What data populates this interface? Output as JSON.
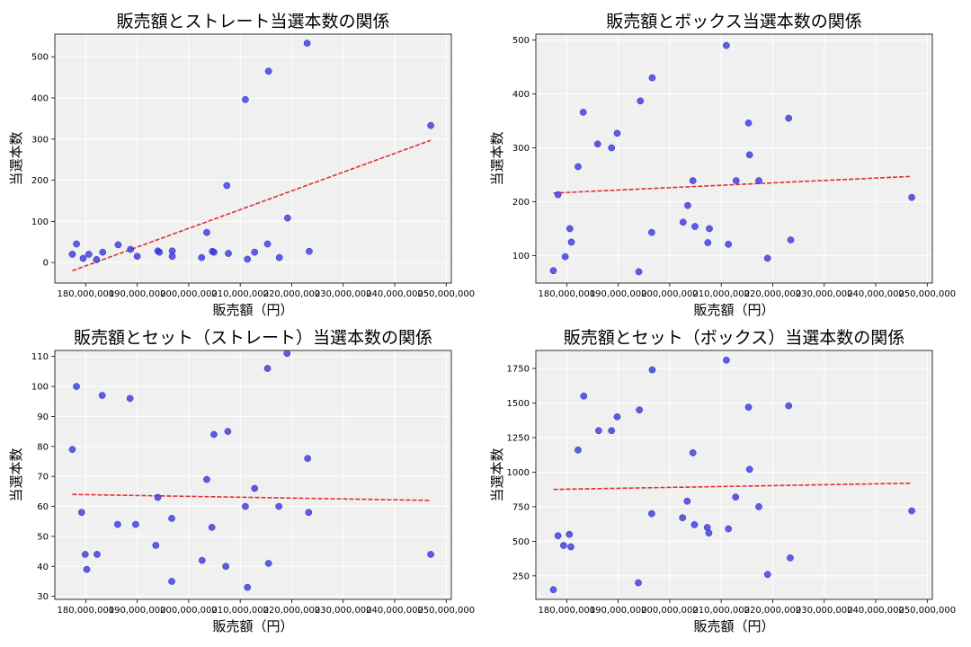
{
  "chart_data": [
    {
      "type": "scatter",
      "title": "販売額とストレート当選本数の関係",
      "xlabel": "販売額（円）",
      "ylabel": "当選本数",
      "xlim": [
        174000000,
        251000000
      ],
      "ylim": [
        -50,
        555
      ],
      "xticks": [
        180000000,
        190000000,
        200000000,
        210000000,
        220000000,
        230000000,
        240000000,
        250000000
      ],
      "xtick_labels": [
        "180,000,000",
        "190,000,000",
        "200,000,000",
        "210,000,000",
        "220,000,000",
        "230,000,000",
        "240,000,000",
        "250,000,000"
      ],
      "yticks": [
        0,
        100,
        200,
        300,
        400,
        500
      ],
      "ytick_labels": [
        "0",
        "100",
        "200",
        "300",
        "400",
        "500"
      ],
      "grid": true,
      "colors": {
        "points": "#3b3be0",
        "trend": "#e03030",
        "bg": "#f0f0f0"
      },
      "points": [
        {
          "x": 177400000,
          "y": 20
        },
        {
          "x": 178200000,
          "y": 45
        },
        {
          "x": 179500000,
          "y": 10
        },
        {
          "x": 180600000,
          "y": 20
        },
        {
          "x": 182100000,
          "y": 7
        },
        {
          "x": 183300000,
          "y": 25
        },
        {
          "x": 186300000,
          "y": 43
        },
        {
          "x": 188700000,
          "y": 32
        },
        {
          "x": 190000000,
          "y": 15
        },
        {
          "x": 194000000,
          "y": 28
        },
        {
          "x": 194300000,
          "y": 25
        },
        {
          "x": 196800000,
          "y": 15
        },
        {
          "x": 196800000,
          "y": 28
        },
        {
          "x": 202500000,
          "y": 12
        },
        {
          "x": 203500000,
          "y": 73
        },
        {
          "x": 204600000,
          "y": 27
        },
        {
          "x": 204900000,
          "y": 25
        },
        {
          "x": 207400000,
          "y": 187
        },
        {
          "x": 207700000,
          "y": 22
        },
        {
          "x": 211000000,
          "y": 396
        },
        {
          "x": 211400000,
          "y": 8
        },
        {
          "x": 212800000,
          "y": 25
        },
        {
          "x": 215300000,
          "y": 45
        },
        {
          "x": 215500000,
          "y": 465
        },
        {
          "x": 217600000,
          "y": 12
        },
        {
          "x": 219200000,
          "y": 108
        },
        {
          "x": 223000000,
          "y": 533
        },
        {
          "x": 223400000,
          "y": 27
        },
        {
          "x": 247000000,
          "y": 333
        }
      ],
      "trend": {
        "x1": 177400000,
        "y1": -20,
        "x2": 247000000,
        "y2": 297
      }
    },
    {
      "type": "scatter",
      "title": "販売額とボックス当選本数の関係",
      "xlabel": "販売額（円）",
      "ylabel": "当選本数",
      "xlim": [
        174000000,
        251000000
      ],
      "ylim": [
        49,
        511
      ],
      "xticks": [
        180000000,
        190000000,
        200000000,
        210000000,
        220000000,
        230000000,
        240000000,
        250000000
      ],
      "xtick_labels": [
        "180,000,000",
        "190,000,000",
        "200,000,000",
        "210,000,000",
        "220,000,000",
        "230,000,000",
        "240,000,000",
        "250,000,000"
      ],
      "yticks": [
        100,
        200,
        300,
        400,
        500
      ],
      "ytick_labels": [
        "100",
        "200",
        "300",
        "400",
        "500"
      ],
      "grid": true,
      "colors": {
        "points": "#3b3be0",
        "trend": "#e03030",
        "bg": "#f0f0f0"
      },
      "points": [
        {
          "x": 177400000,
          "y": 72
        },
        {
          "x": 178300000,
          "y": 213
        },
        {
          "x": 179700000,
          "y": 98
        },
        {
          "x": 180600000,
          "y": 150
        },
        {
          "x": 180900000,
          "y": 125
        },
        {
          "x": 182200000,
          "y": 265
        },
        {
          "x": 183200000,
          "y": 366
        },
        {
          "x": 186000000,
          "y": 307
        },
        {
          "x": 188700000,
          "y": 300
        },
        {
          "x": 189800000,
          "y": 327
        },
        {
          "x": 194000000,
          "y": 70
        },
        {
          "x": 194300000,
          "y": 387
        },
        {
          "x": 196500000,
          "y": 143
        },
        {
          "x": 196600000,
          "y": 430
        },
        {
          "x": 202600000,
          "y": 162
        },
        {
          "x": 203500000,
          "y": 193
        },
        {
          "x": 204500000,
          "y": 239
        },
        {
          "x": 204900000,
          "y": 154
        },
        {
          "x": 207400000,
          "y": 124
        },
        {
          "x": 207700000,
          "y": 150
        },
        {
          "x": 211000000,
          "y": 490
        },
        {
          "x": 211400000,
          "y": 121
        },
        {
          "x": 212900000,
          "y": 239
        },
        {
          "x": 215300000,
          "y": 346
        },
        {
          "x": 215500000,
          "y": 287
        },
        {
          "x": 217300000,
          "y": 239
        },
        {
          "x": 219000000,
          "y": 95
        },
        {
          "x": 223100000,
          "y": 355
        },
        {
          "x": 223500000,
          "y": 129
        },
        {
          "x": 247000000,
          "y": 208
        }
      ],
      "trend": {
        "x1": 177400000,
        "y1": 216,
        "x2": 247000000,
        "y2": 247
      }
    },
    {
      "type": "scatter",
      "title": "販売額とセット（ストレート）当選本数の関係",
      "xlabel": "販売額（円）",
      "ylabel": "当選本数",
      "xlim": [
        174000000,
        251000000
      ],
      "ylim": [
        29,
        112
      ],
      "xticks": [
        180000000,
        190000000,
        200000000,
        210000000,
        220000000,
        230000000,
        240000000,
        250000000
      ],
      "xtick_labels": [
        "180,000,000",
        "190,000,000",
        "200,000,000",
        "210,000,000",
        "220,000,000",
        "230,000,000",
        "240,000,000",
        "250,000,000"
      ],
      "yticks": [
        30,
        40,
        50,
        60,
        70,
        80,
        90,
        100,
        110
      ],
      "ytick_labels": [
        "30",
        "40",
        "50",
        "60",
        "70",
        "80",
        "90",
        "100",
        "110"
      ],
      "grid": true,
      "colors": {
        "points": "#3b3be0",
        "trend": "#e03030",
        "bg": "#f0f0f0"
      },
      "points": [
        {
          "x": 177400000,
          "y": 79
        },
        {
          "x": 178200000,
          "y": 100
        },
        {
          "x": 179200000,
          "y": 58
        },
        {
          "x": 179900000,
          "y": 44
        },
        {
          "x": 180200000,
          "y": 39
        },
        {
          "x": 182200000,
          "y": 44
        },
        {
          "x": 183200000,
          "y": 97
        },
        {
          "x": 186200000,
          "y": 54
        },
        {
          "x": 188600000,
          "y": 96
        },
        {
          "x": 189700000,
          "y": 54
        },
        {
          "x": 193600000,
          "y": 47
        },
        {
          "x": 194000000,
          "y": 63
        },
        {
          "x": 196700000,
          "y": 35
        },
        {
          "x": 196700000,
          "y": 56
        },
        {
          "x": 202600000,
          "y": 42
        },
        {
          "x": 203500000,
          "y": 69
        },
        {
          "x": 204500000,
          "y": 53
        },
        {
          "x": 204900000,
          "y": 84
        },
        {
          "x": 207200000,
          "y": 40
        },
        {
          "x": 207600000,
          "y": 85
        },
        {
          "x": 211000000,
          "y": 60
        },
        {
          "x": 211400000,
          "y": 33
        },
        {
          "x": 212800000,
          "y": 66
        },
        {
          "x": 215300000,
          "y": 106
        },
        {
          "x": 215500000,
          "y": 41
        },
        {
          "x": 217500000,
          "y": 60
        },
        {
          "x": 219100000,
          "y": 111
        },
        {
          "x": 223100000,
          "y": 76
        },
        {
          "x": 223300000,
          "y": 58
        },
        {
          "x": 247000000,
          "y": 44
        }
      ],
      "trend": {
        "x1": 177400000,
        "y1": 64,
        "x2": 247000000,
        "y2": 62
      }
    },
    {
      "type": "scatter",
      "title": "販売額とセット（ボックス）当選本数の関係",
      "xlabel": "販売額（円）",
      "ylabel": "当選本数",
      "xlim": [
        174000000,
        251000000
      ],
      "ylim": [
        80,
        1880
      ],
      "xticks": [
        180000000,
        190000000,
        200000000,
        210000000,
        220000000,
        230000000,
        240000000,
        250000000
      ],
      "xtick_labels": [
        "180,000,000",
        "190,000,000",
        "200,000,000",
        "210,000,000",
        "220,000,000",
        "230,000,000",
        "240,000,000",
        "250,000,000"
      ],
      "yticks": [
        250,
        500,
        750,
        1000,
        1250,
        1500,
        1750
      ],
      "ytick_labels": [
        "250",
        "500",
        "750",
        "1000",
        "1250",
        "1500",
        "1750"
      ],
      "grid": true,
      "colors": {
        "points": "#3b3be0",
        "trend": "#e03030",
        "bg": "#f0f0f0"
      },
      "points": [
        {
          "x": 177400000,
          "y": 150
        },
        {
          "x": 178300000,
          "y": 540
        },
        {
          "x": 179400000,
          "y": 470
        },
        {
          "x": 180500000,
          "y": 550
        },
        {
          "x": 180800000,
          "y": 460
        },
        {
          "x": 182200000,
          "y": 1160
        },
        {
          "x": 183300000,
          "y": 1550
        },
        {
          "x": 186200000,
          "y": 1300
        },
        {
          "x": 188700000,
          "y": 1300
        },
        {
          "x": 189800000,
          "y": 1400
        },
        {
          "x": 193900000,
          "y": 200
        },
        {
          "x": 194100000,
          "y": 1450
        },
        {
          "x": 196500000,
          "y": 700
        },
        {
          "x": 196600000,
          "y": 1740
        },
        {
          "x": 202500000,
          "y": 670
        },
        {
          "x": 203400000,
          "y": 790
        },
        {
          "x": 204500000,
          "y": 1140
        },
        {
          "x": 204800000,
          "y": 620
        },
        {
          "x": 207300000,
          "y": 600
        },
        {
          "x": 207600000,
          "y": 560
        },
        {
          "x": 211000000,
          "y": 1810
        },
        {
          "x": 211400000,
          "y": 590
        },
        {
          "x": 212800000,
          "y": 820
        },
        {
          "x": 215300000,
          "y": 1470
        },
        {
          "x": 215500000,
          "y": 1020
        },
        {
          "x": 217300000,
          "y": 750
        },
        {
          "x": 219000000,
          "y": 260
        },
        {
          "x": 223100000,
          "y": 1480
        },
        {
          "x": 223400000,
          "y": 380
        },
        {
          "x": 247000000,
          "y": 720
        }
      ],
      "trend": {
        "x1": 177400000,
        "y1": 875,
        "x2": 247000000,
        "y2": 920
      }
    }
  ]
}
